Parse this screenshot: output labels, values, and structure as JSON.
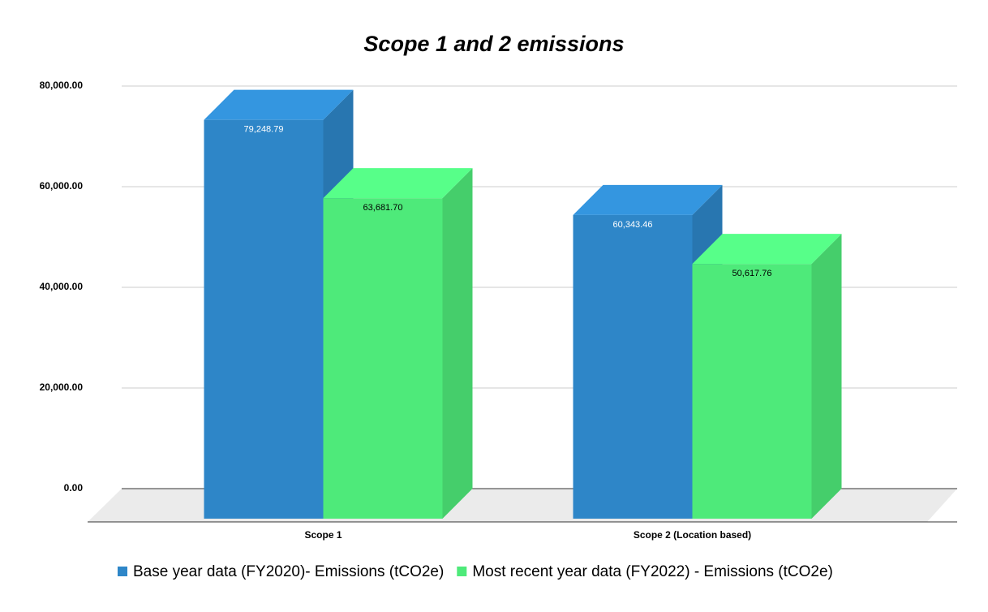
{
  "chart_data": {
    "type": "bar3d",
    "title": "Scope 1 and 2 emissions",
    "categories": [
      "Scope 1",
      "Scope 2 (Location based)"
    ],
    "series": [
      {
        "name": "Base year data (FY2020)- Emissions (tCO2e)",
        "color": "#2e86c8",
        "values": [
          79248.79,
          60343.46
        ],
        "value_labels": [
          "79,248.79",
          "60,343.46"
        ]
      },
      {
        "name": "Most recent year data (FY2022) - Emissions (tCO2e)",
        "color": "#4eea7a",
        "values": [
          63681.7,
          50617.76
        ],
        "value_labels": [
          "63,681.70",
          "50,617.76"
        ]
      }
    ],
    "ylim": [
      0,
      80000
    ],
    "yticks": [
      {
        "value": 0,
        "label": "0.00"
      },
      {
        "value": 20000,
        "label": "20,000.00"
      },
      {
        "value": 40000,
        "label": "40,000.00"
      },
      {
        "value": 60000,
        "label": "60,000.00"
      },
      {
        "value": 80000,
        "label": "80,000.00"
      }
    ],
    "grid": true,
    "legend": "bottom"
  }
}
